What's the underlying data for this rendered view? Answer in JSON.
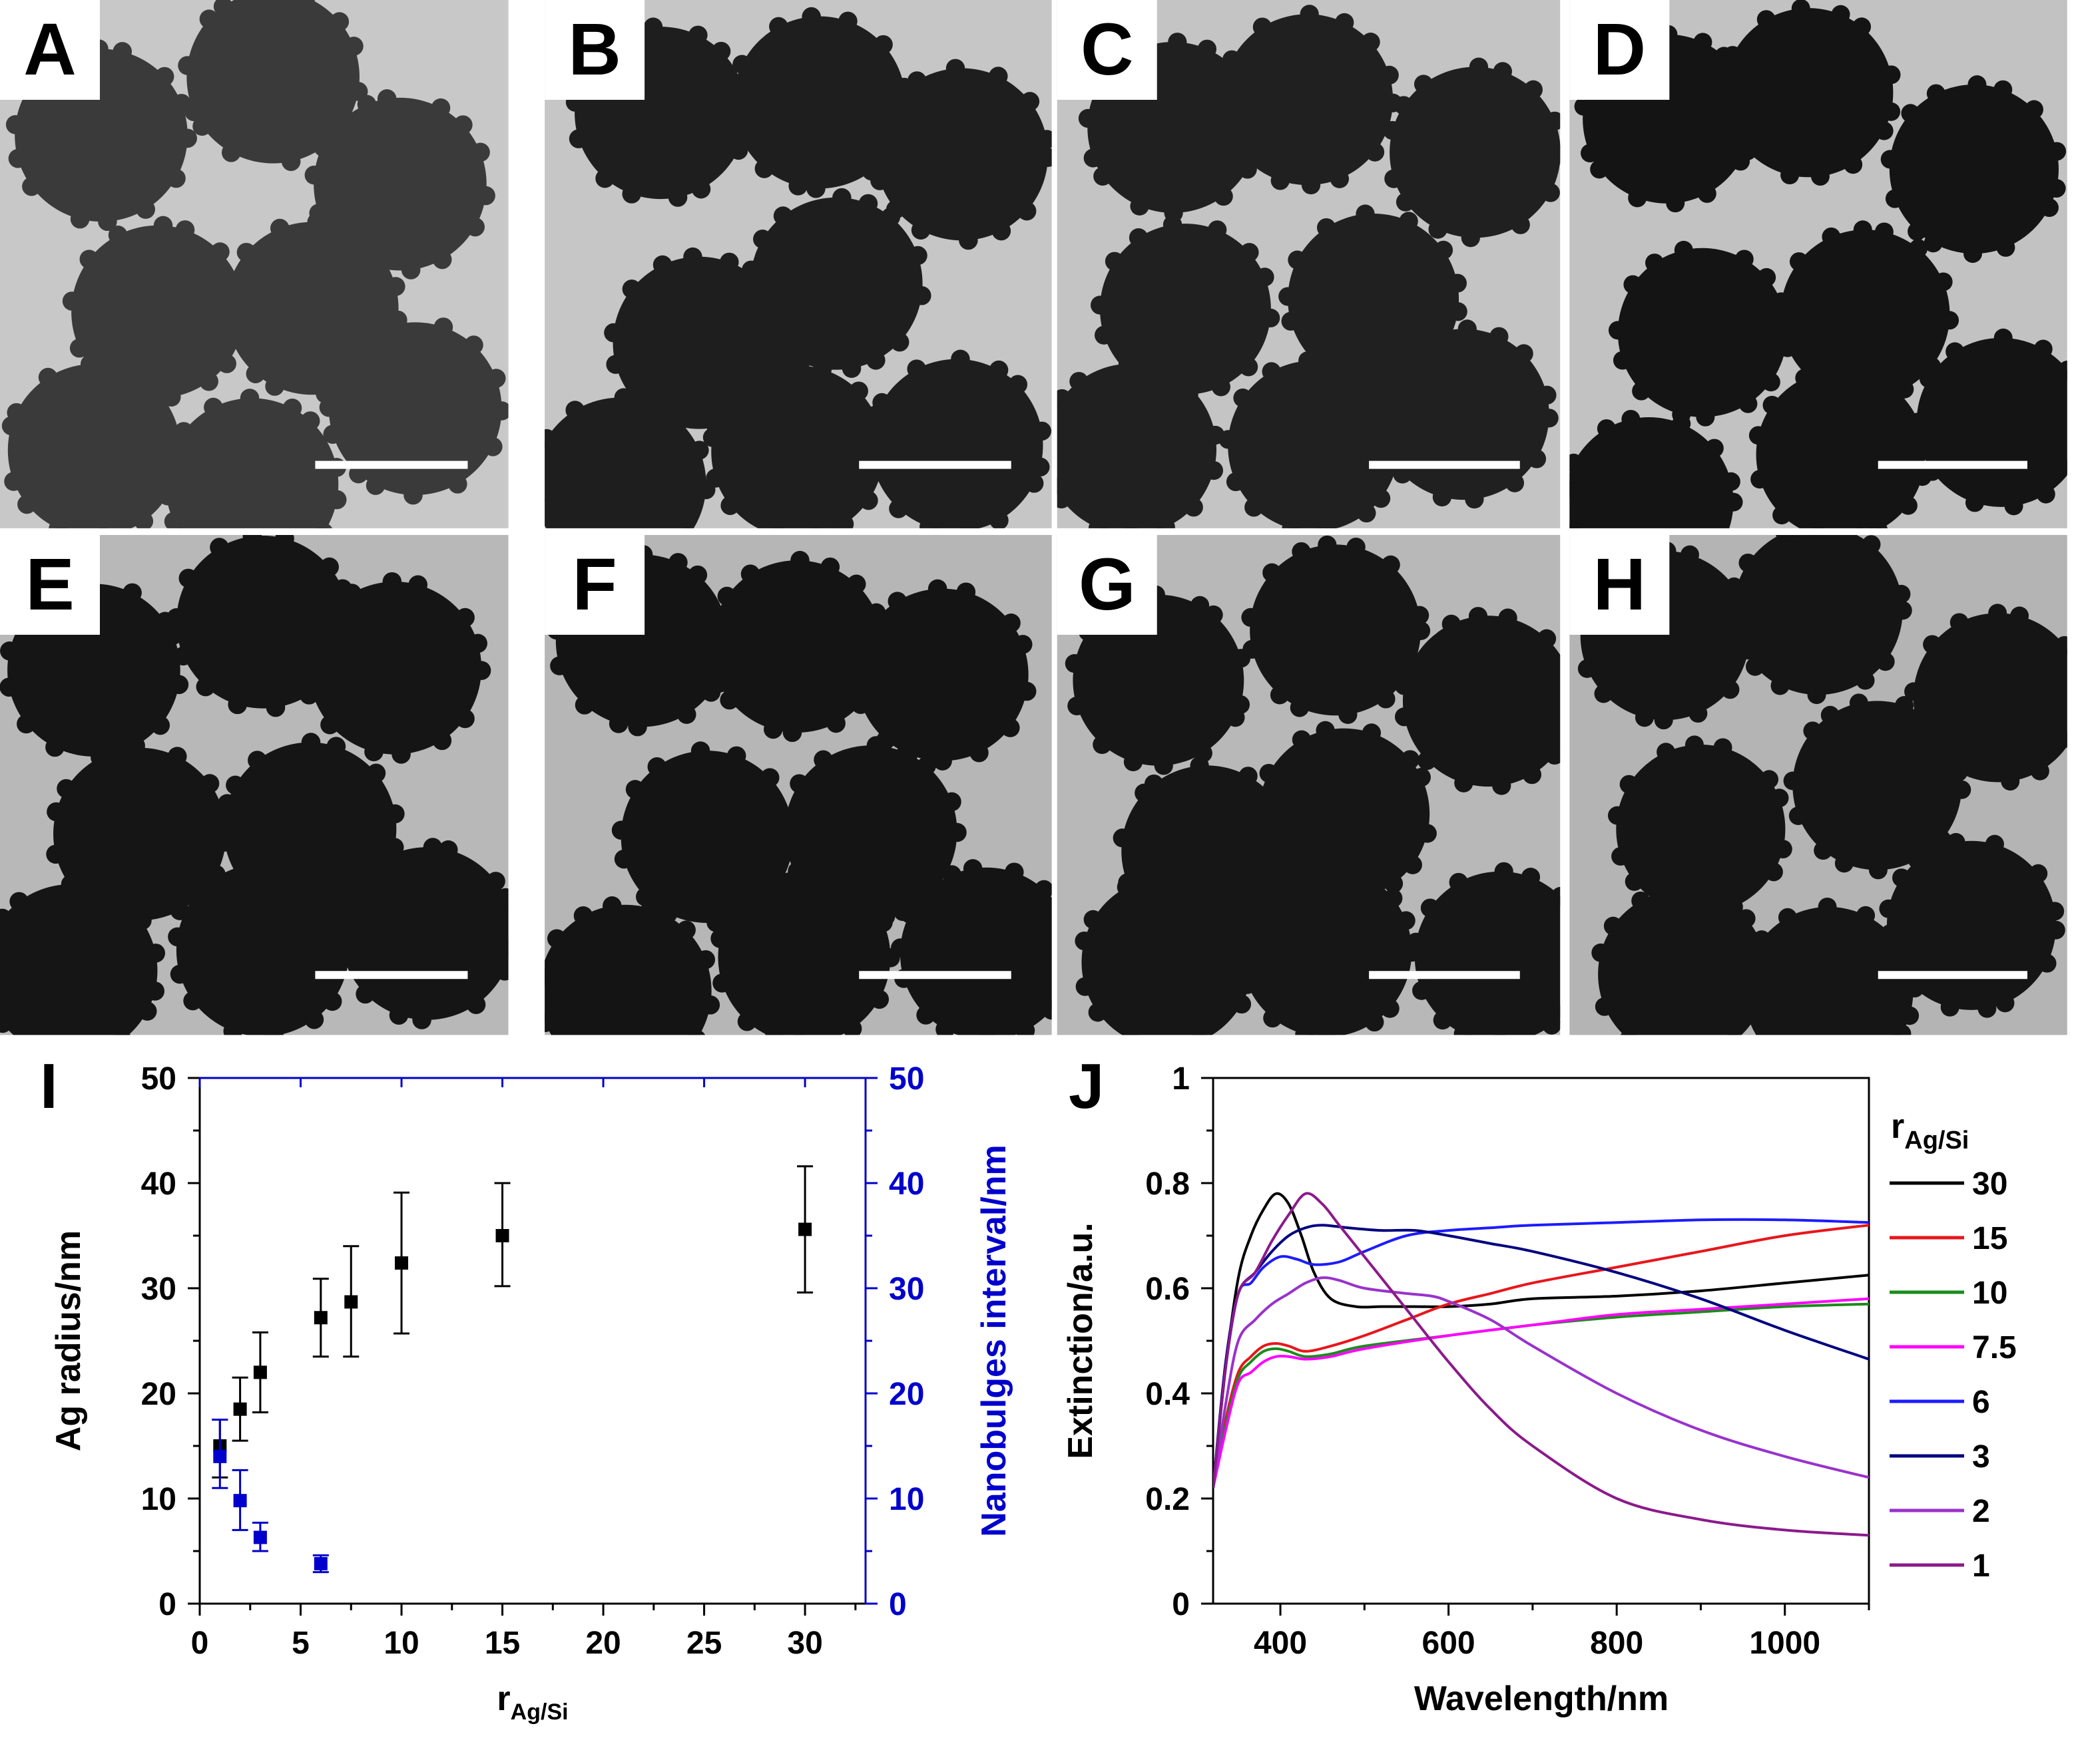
{
  "micrographs": {
    "panels": [
      {
        "label": "A",
        "shade": "#3a3a3a",
        "bg": "#c8c8c8"
      },
      {
        "label": "B",
        "shade": "#1e1e1e",
        "bg": "#c6c6c6"
      },
      {
        "label": "C",
        "shade": "#202020",
        "bg": "#c4c4c4"
      },
      {
        "label": "D",
        "shade": "#141414",
        "bg": "#c2c2c2"
      },
      {
        "label": "E",
        "shade": "#151515",
        "bg": "#b8b8b8"
      },
      {
        "label": "F",
        "shade": "#141414",
        "bg": "#b6b6b6"
      },
      {
        "label": "G",
        "shade": "#161616",
        "bg": "#b8b8b8"
      },
      {
        "label": "H",
        "shade": "#151515",
        "bg": "#b4b4b4"
      }
    ]
  },
  "chart_data": [
    {
      "panel_label": "I",
      "type": "scatter",
      "xlabel_main": "r",
      "xlabel_sub": "Ag/Si",
      "ylabel": "Ag radius/nm",
      "ylabel_right": "Nanobulges interval/nm",
      "xlim": [
        0,
        33
      ],
      "ylim": [
        0,
        50
      ],
      "ylim_right": [
        0,
        50
      ],
      "xticks": [
        0,
        5,
        10,
        15,
        20,
        25,
        30
      ],
      "xtick_labels": [
        "0",
        "5",
        "10",
        "15",
        "20",
        "25",
        "30"
      ],
      "yticks": [
        0,
        10,
        20,
        30,
        40,
        50
      ],
      "ytick_labels": [
        "0",
        "10",
        "20",
        "30",
        "40",
        "50"
      ],
      "ytick_labels_right": [
        "0",
        "10",
        "20",
        "30",
        "40",
        "50"
      ],
      "colors": {
        "left": "#000000",
        "right": "#0000cc"
      },
      "series": [
        {
          "name": "Ag radius",
          "axis": "left",
          "color": "#000000",
          "x": [
            1,
            2,
            3,
            6,
            7.5,
            10,
            15,
            30
          ],
          "y": [
            15.0,
            18.5,
            22.0,
            27.2,
            28.7,
            32.4,
            35.0,
            35.6
          ],
          "y_low": [
            12.0,
            15.5,
            18.2,
            23.5,
            23.5,
            25.7,
            30.2,
            29.6
          ],
          "y_high": [
            17.5,
            21.5,
            25.8,
            30.9,
            34.0,
            39.1,
            40.0,
            41.6
          ]
        },
        {
          "name": "Nanobulges interval",
          "axis": "right",
          "color": "#0000cc",
          "x": [
            1,
            2,
            3,
            6
          ],
          "y": [
            14.0,
            9.8,
            6.3,
            3.8
          ],
          "y_low": [
            11.0,
            7.0,
            5.0,
            3.0
          ],
          "y_high": [
            17.5,
            12.7,
            7.7,
            4.6
          ]
        }
      ]
    },
    {
      "panel_label": "J",
      "type": "line",
      "xlabel": "Wavelength/nm",
      "ylabel": "Extinction/a.u.",
      "xlim": [
        320,
        1100
      ],
      "ylim": [
        0,
        1
      ],
      "xticks": [
        400,
        600,
        800,
        1000
      ],
      "xtick_labels": [
        "400",
        "600",
        "800",
        "1000"
      ],
      "yticks": [
        0,
        0.2,
        0.4,
        0.6,
        0.8,
        1.0
      ],
      "ytick_labels": [
        "0",
        "0.2",
        "0.4",
        "0.6",
        "0.8",
        "1"
      ],
      "legend_title_main": "r",
      "legend_title_sub": "Ag/Si",
      "legend_position": "right",
      "series": [
        {
          "name": "30",
          "color": "#000000",
          "x": [
            320,
            335,
            350,
            365,
            380,
            395,
            410,
            425,
            440,
            460,
            490,
            520,
            560,
            600,
            650,
            700,
            800,
            900,
            1000,
            1100
          ],
          "y": [
            0.22,
            0.45,
            0.62,
            0.7,
            0.75,
            0.78,
            0.76,
            0.7,
            0.63,
            0.58,
            0.565,
            0.565,
            0.565,
            0.565,
            0.57,
            0.58,
            0.585,
            0.595,
            0.61,
            0.625
          ]
        },
        {
          "name": "15",
          "color": "#e8161b",
          "x": [
            320,
            335,
            350,
            365,
            380,
            395,
            410,
            430,
            460,
            500,
            550,
            600,
            650,
            700,
            800,
            900,
            1000,
            1100
          ],
          "y": [
            0.22,
            0.35,
            0.44,
            0.47,
            0.49,
            0.495,
            0.49,
            0.48,
            0.49,
            0.51,
            0.54,
            0.57,
            0.59,
            0.61,
            0.64,
            0.67,
            0.7,
            0.72
          ]
        },
        {
          "name": "10",
          "color": "#1a8c1a",
          "x": [
            320,
            335,
            350,
            365,
            380,
            395,
            410,
            430,
            460,
            500,
            600,
            700,
            800,
            900,
            1000,
            1100
          ],
          "y": [
            0.22,
            0.34,
            0.43,
            0.46,
            0.48,
            0.485,
            0.48,
            0.47,
            0.475,
            0.49,
            0.51,
            0.53,
            0.545,
            0.555,
            0.565,
            0.57
          ]
        },
        {
          "name": "7.5",
          "color": "#ff00ff",
          "x": [
            320,
            335,
            350,
            365,
            380,
            395,
            410,
            430,
            460,
            500,
            600,
            700,
            800,
            900,
            1000,
            1100
          ],
          "y": [
            0.22,
            0.33,
            0.42,
            0.44,
            0.46,
            0.47,
            0.47,
            0.465,
            0.47,
            0.485,
            0.51,
            0.53,
            0.55,
            0.56,
            0.57,
            0.58
          ]
        },
        {
          "name": "6",
          "color": "#1c1cff",
          "x": [
            320,
            335,
            350,
            365,
            380,
            400,
            420,
            440,
            470,
            500,
            550,
            600,
            650,
            700,
            800,
            900,
            1000,
            1100
          ],
          "y": [
            0.22,
            0.45,
            0.59,
            0.61,
            0.64,
            0.66,
            0.655,
            0.645,
            0.65,
            0.67,
            0.7,
            0.71,
            0.715,
            0.72,
            0.725,
            0.73,
            0.73,
            0.725
          ]
        },
        {
          "name": "3",
          "color": "#000080",
          "x": [
            320,
            335,
            350,
            370,
            390,
            410,
            430,
            450,
            480,
            520,
            560,
            600,
            650,
            700,
            800,
            900,
            1000,
            1100
          ],
          "y": [
            0.22,
            0.46,
            0.59,
            0.63,
            0.67,
            0.7,
            0.715,
            0.72,
            0.715,
            0.71,
            0.71,
            0.7,
            0.685,
            0.67,
            0.63,
            0.58,
            0.52,
            0.465
          ]
        },
        {
          "name": "2",
          "color": "#9932cc",
          "x": [
            320,
            335,
            350,
            370,
            390,
            410,
            430,
            450,
            470,
            500,
            550,
            580,
            600,
            650,
            700,
            800,
            900,
            1000,
            1100
          ],
          "y": [
            0.22,
            0.38,
            0.5,
            0.54,
            0.57,
            0.59,
            0.61,
            0.62,
            0.615,
            0.6,
            0.59,
            0.585,
            0.575,
            0.54,
            0.49,
            0.4,
            0.33,
            0.28,
            0.24
          ]
        },
        {
          "name": "1",
          "color": "#8b1a8b",
          "x": [
            320,
            335,
            350,
            370,
            390,
            410,
            430,
            450,
            470,
            500,
            550,
            600,
            650,
            700,
            800,
            900,
            1000,
            1100
          ],
          "y": [
            0.22,
            0.45,
            0.59,
            0.63,
            0.69,
            0.74,
            0.78,
            0.76,
            0.72,
            0.66,
            0.56,
            0.46,
            0.37,
            0.3,
            0.2,
            0.16,
            0.14,
            0.13
          ]
        }
      ]
    }
  ]
}
